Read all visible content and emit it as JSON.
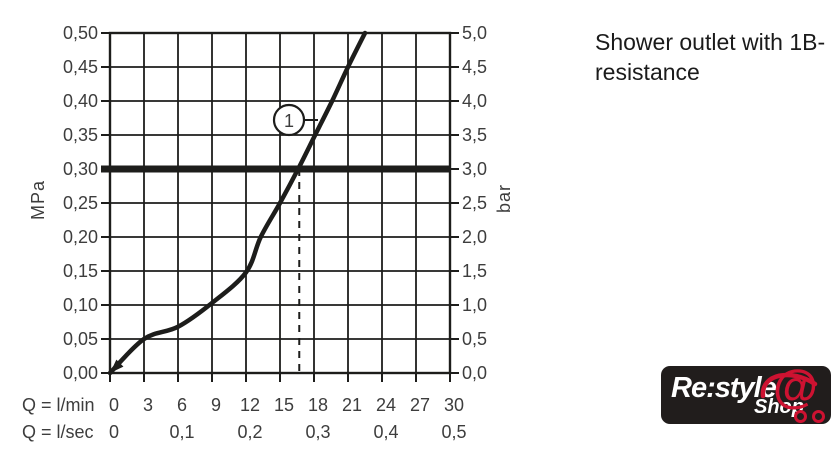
{
  "title": "Shower outlet with 1B-resistance",
  "chart_data": {
    "type": "line",
    "grid": true,
    "y_left": {
      "unit": "MPa",
      "ticks": [
        "0,50",
        "0,45",
        "0,40",
        "0,35",
        "0,30",
        "0,25",
        "0,20",
        "0,15",
        "0,10",
        "0,05",
        "0,00"
      ],
      "range": [
        0,
        0.5
      ]
    },
    "y_right": {
      "unit": "bar",
      "ticks": [
        "5,0",
        "4,5",
        "4,0",
        "3,5",
        "3,0",
        "2,5",
        "2,0",
        "1,5",
        "1,0",
        "0,5",
        "0,0"
      ],
      "range": [
        0,
        5.0
      ]
    },
    "x_axis": {
      "row1_label": "Q = l/min",
      "row2_label": "Q = l/sec",
      "ticks_lmin": [
        "0",
        "3",
        "6",
        "9",
        "12",
        "15",
        "18",
        "21",
        "24",
        "27",
        "30"
      ],
      "ticks_lsec": [
        "0",
        "0,1",
        "0,2",
        "0,3",
        "0,4",
        "0,5"
      ],
      "range_lmin": [
        0,
        30
      ]
    },
    "series": [
      {
        "name": "flow-pressure-curve",
        "points_lmin_mpa": [
          [
            0,
            0.0
          ],
          [
            3,
            0.05
          ],
          [
            6,
            0.068
          ],
          [
            9,
            0.103
          ],
          [
            12,
            0.148
          ],
          [
            13.3,
            0.2
          ],
          [
            15.0,
            0.25
          ],
          [
            16.6,
            0.3
          ],
          [
            18.1,
            0.35
          ],
          [
            19.6,
            0.4
          ],
          [
            21.0,
            0.45
          ],
          [
            22.5,
            0.5
          ]
        ]
      }
    ],
    "reference_line": {
      "mpa": 0.3,
      "bar": 3.0
    },
    "operating_point": {
      "lmin": 16.7,
      "mpa": 0.3
    },
    "callout": {
      "label": "1"
    }
  },
  "logo": {
    "brand": "Re:style",
    "shop": "Shop",
    "at_symbol": "@"
  },
  "colors": {
    "line_black": "#1d1d1b",
    "label_gray": "#3d3d3d",
    "logo_red": "#cd1231",
    "logo_bg": "#211d1c"
  }
}
